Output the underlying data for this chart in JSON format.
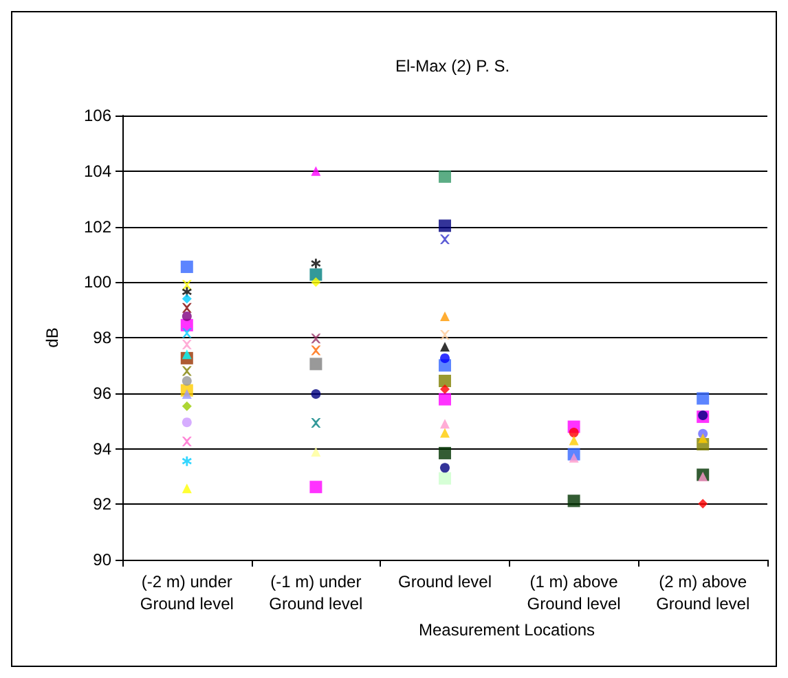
{
  "chart_data": {
    "type": "scatter",
    "title": "El-Max (2) P. S.",
    "xlabel": "Measurement Locations",
    "ylabel": "dB",
    "categories": [
      "(-2 m) under\nGround level",
      "(-1 m) under\nGround level",
      "Ground level",
      "(1 m) above\nGround level",
      "(2 m) above\nGround level"
    ],
    "ylim": [
      90,
      106
    ],
    "yticks": [
      90,
      92,
      94,
      96,
      98,
      100,
      102,
      104,
      106
    ],
    "grid": "y",
    "series": [
      {
        "color": "#3366ff",
        "marker": "square",
        "x": [
          "(-2 m) under\nGround level"
        ],
        "values": [
          100.55
        ]
      },
      {
        "color": "#ffff00",
        "marker": "cross",
        "x": [
          "(-2 m) under\nGround level"
        ],
        "values": [
          99.9
        ]
      },
      {
        "color": "#000000",
        "marker": "star",
        "x": [
          "(-2 m) under\nGround level"
        ],
        "values": [
          99.65
        ]
      },
      {
        "color": "#00ccff",
        "marker": "diamond",
        "x": [
          "(-2 m) under\nGround level"
        ],
        "values": [
          99.4
        ]
      },
      {
        "color": "#800000",
        "marker": "cross",
        "x": [
          "(-2 m) under\nGround level"
        ],
        "values": [
          99.07
        ]
      },
      {
        "color": "#800080",
        "marker": "circle",
        "x": [
          "(-2 m) under\nGround level"
        ],
        "values": [
          98.77
        ]
      },
      {
        "color": "#ff00ff",
        "marker": "square",
        "x": [
          "(-2 m) under\nGround level"
        ],
        "values": [
          98.45
        ]
      },
      {
        "color": "#00ccff",
        "marker": "cross",
        "x": [
          "(-2 m) under\nGround level"
        ],
        "values": [
          98.17
        ]
      },
      {
        "color": "#ff99cc",
        "marker": "cross",
        "x": [
          "(-2 m) under\nGround level"
        ],
        "values": [
          97.75
        ]
      },
      {
        "color": "#993300",
        "marker": "square",
        "x": [
          "(-2 m) under\nGround level"
        ],
        "values": [
          97.26
        ]
      },
      {
        "color": "#00ffff",
        "marker": "triangle",
        "x": [
          "(-2 m) under\nGround level"
        ],
        "values": [
          97.4
        ]
      },
      {
        "color": "#808000",
        "marker": "cross",
        "x": [
          "(-2 m) under\nGround level"
        ],
        "values": [
          96.8
        ]
      },
      {
        "color": "#969696",
        "marker": "circle",
        "x": [
          "(-2 m) under\nGround level"
        ],
        "values": [
          96.44
        ]
      },
      {
        "color": "#ffcc00",
        "marker": "square",
        "x": [
          "(-2 m) under\nGround level"
        ],
        "values": [
          96.1
        ]
      },
      {
        "color": "#9999ff",
        "marker": "triangle",
        "x": [
          "(-2 m) under\nGround level"
        ],
        "values": [
          95.97
        ]
      },
      {
        "color": "#99cc00",
        "marker": "diamond",
        "x": [
          "(-2 m) under\nGround level"
        ],
        "values": [
          95.53
        ]
      },
      {
        "color": "#cc99ff",
        "marker": "circle",
        "x": [
          "(-2 m) under\nGround level"
        ],
        "values": [
          94.95
        ]
      },
      {
        "color": "#ff66cc",
        "marker": "cross",
        "x": [
          "(-2 m) under\nGround level"
        ],
        "values": [
          94.26
        ]
      },
      {
        "color": "#00ccff",
        "marker": "star",
        "x": [
          "(-2 m) under\nGround level"
        ],
        "values": [
          93.55
        ]
      },
      {
        "color": "#ffff00",
        "marker": "triangle",
        "x": [
          "(-2 m) under\nGround level"
        ],
        "values": [
          92.57
        ]
      },
      {
        "color": "#000000",
        "marker": "star",
        "x": [
          "(-1 m) under\nGround level"
        ],
        "values": [
          100.67
        ]
      },
      {
        "color": "#008080",
        "marker": "square",
        "x": [
          "(-1 m) under\nGround level"
        ],
        "values": [
          100.27
        ]
      },
      {
        "color": "#ffff00",
        "marker": "diamond",
        "x": [
          "(-1 m) under\nGround level"
        ],
        "values": [
          100.0
        ]
      },
      {
        "color": "#ff00ff",
        "marker": "triangle",
        "x": [
          "(-1 m) under\nGround level"
        ],
        "values": [
          104.0
        ]
      },
      {
        "color": "#993366",
        "marker": "cross",
        "x": [
          "(-1 m) under\nGround level"
        ],
        "values": [
          97.97
        ]
      },
      {
        "color": "#ff6600",
        "marker": "cross",
        "x": [
          "(-1 m) under\nGround level"
        ],
        "values": [
          97.54
        ]
      },
      {
        "color": "#808080",
        "marker": "square",
        "x": [
          "(-1 m) under\nGround level"
        ],
        "values": [
          97.05
        ]
      },
      {
        "color": "#000080",
        "marker": "circle",
        "x": [
          "(-1 m) under\nGround level"
        ],
        "values": [
          95.97
        ]
      },
      {
        "color": "#008080",
        "marker": "cross",
        "x": [
          "(-1 m) under\nGround level"
        ],
        "values": [
          94.93
        ]
      },
      {
        "color": "#ffff99",
        "marker": "triangle",
        "x": [
          "(-1 m) under\nGround level"
        ],
        "values": [
          93.89
        ]
      },
      {
        "color": "#ff00ff",
        "marker": "square",
        "x": [
          "(-1 m) under\nGround level"
        ],
        "values": [
          92.62
        ]
      },
      {
        "color": "#339966",
        "marker": "square",
        "x": [
          "Ground level"
        ],
        "values": [
          103.8
        ]
      },
      {
        "color": "#000080",
        "marker": "square",
        "x": [
          "Ground level"
        ],
        "values": [
          102.03
        ]
      },
      {
        "color": "#3333cc",
        "marker": "cross",
        "x": [
          "Ground level"
        ],
        "values": [
          101.54
        ]
      },
      {
        "color": "#ff9900",
        "marker": "triangle",
        "x": [
          "Ground level"
        ],
        "values": [
          98.77
        ]
      },
      {
        "color": "#ffcc99",
        "marker": "cross",
        "x": [
          "Ground level"
        ],
        "values": [
          98.1
        ]
      },
      {
        "color": "#000000",
        "marker": "triangle",
        "x": [
          "Ground level"
        ],
        "values": [
          97.67
        ]
      },
      {
        "color": "#0000ff",
        "marker": "circle",
        "x": [
          "Ground level"
        ],
        "values": [
          97.26
        ]
      },
      {
        "color": "#3366ff",
        "marker": "square",
        "x": [
          "Ground level"
        ],
        "values": [
          97.0
        ]
      },
      {
        "color": "#808000",
        "marker": "square",
        "x": [
          "Ground level"
        ],
        "values": [
          96.44
        ]
      },
      {
        "color": "#ff0000",
        "marker": "diamond",
        "x": [
          "Ground level"
        ],
        "values": [
          96.14
        ]
      },
      {
        "color": "#ff00ff",
        "marker": "square",
        "x": [
          "Ground level"
        ],
        "values": [
          95.78
        ]
      },
      {
        "color": "#ff99cc",
        "marker": "triangle",
        "x": [
          "Ground level"
        ],
        "values": [
          94.9
        ]
      },
      {
        "color": "#ffcc00",
        "marker": "triangle",
        "x": [
          "Ground level"
        ],
        "values": [
          94.57
        ]
      },
      {
        "color": "#003300",
        "marker": "square",
        "x": [
          "Ground level"
        ],
        "values": [
          93.84
        ]
      },
      {
        "color": "#000080",
        "marker": "circle",
        "x": [
          "Ground level"
        ],
        "values": [
          93.31
        ]
      },
      {
        "color": "#ccffcc",
        "marker": "square",
        "x": [
          "Ground level"
        ],
        "values": [
          92.93
        ]
      },
      {
        "color": "#ff00ff",
        "marker": "square",
        "x": [
          "(1 m) above\nGround level"
        ],
        "values": [
          94.79
        ]
      },
      {
        "color": "#ff0000",
        "marker": "circle",
        "x": [
          "(1 m) above\nGround level"
        ],
        "values": [
          94.58
        ]
      },
      {
        "color": "#ffcc00",
        "marker": "triangle",
        "x": [
          "(1 m) above\nGround level"
        ],
        "values": [
          94.3
        ]
      },
      {
        "color": "#3366ff",
        "marker": "square",
        "x": [
          "(1 m) above\nGround level"
        ],
        "values": [
          93.8
        ]
      },
      {
        "color": "#ff99cc",
        "marker": "triangle",
        "x": [
          "(1 m) above\nGround level"
        ],
        "values": [
          93.67
        ]
      },
      {
        "color": "#003300",
        "marker": "square",
        "x": [
          "(1 m) above\nGround level"
        ],
        "values": [
          92.12
        ]
      },
      {
        "color": "#3366ff",
        "marker": "square",
        "x": [
          "(2 m) above\nGround level"
        ],
        "values": [
          95.81
        ]
      },
      {
        "color": "#ff00ff",
        "marker": "square",
        "x": [
          "(2 m) above\nGround level"
        ],
        "values": [
          95.15
        ]
      },
      {
        "color": "#000080",
        "marker": "circle",
        "x": [
          "(2 m) above\nGround level"
        ],
        "values": [
          95.2
        ]
      },
      {
        "color": "#6666ff",
        "marker": "circle",
        "x": [
          "(2 m) above\nGround level"
        ],
        "values": [
          94.54
        ]
      },
      {
        "color": "#ffcc00",
        "marker": "triangle",
        "x": [
          "(2 m) above\nGround level"
        ],
        "values": [
          94.38
        ]
      },
      {
        "color": "#808000",
        "marker": "square",
        "x": [
          "(2 m) above\nGround level"
        ],
        "values": [
          94.16
        ]
      },
      {
        "color": "#003300",
        "marker": "square",
        "x": [
          "(2 m) above\nGround level"
        ],
        "values": [
          93.06
        ]
      },
      {
        "color": "#ff99cc",
        "marker": "triangle",
        "x": [
          "(2 m) above\nGround level"
        ],
        "values": [
          93.0
        ]
      },
      {
        "color": "#ff0000",
        "marker": "diamond",
        "x": [
          "(2 m) above\nGround level"
        ],
        "values": [
          92.02
        ]
      }
    ]
  }
}
